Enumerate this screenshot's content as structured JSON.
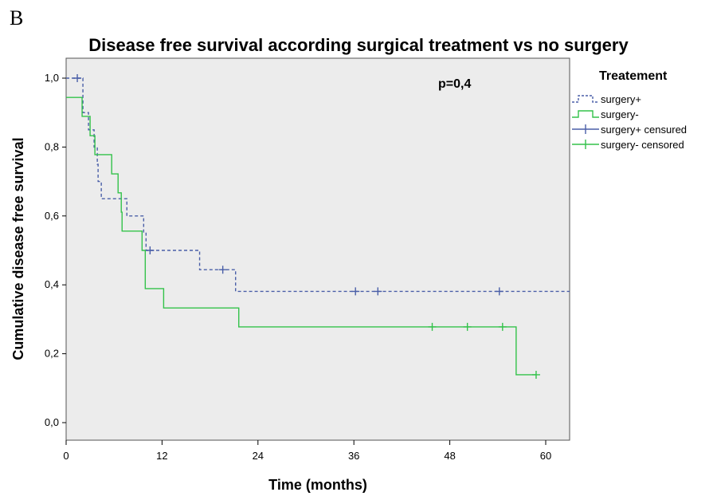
{
  "panel_letter": "B",
  "chart_data": {
    "type": "line",
    "title": "Disease free survival according surgical treatment vs no surgery",
    "xlabel": "Time (months)",
    "ylabel": "Cumulative disease free survival",
    "xlim": [
      0,
      63
    ],
    "ylim": [
      -0.06,
      1.06
    ],
    "xticks": [
      "0",
      "12",
      "24",
      "36",
      "48",
      "60"
    ],
    "xtick_values": [
      0,
      12,
      24,
      36,
      48,
      60
    ],
    "yticks": [
      "0,0",
      "0,2",
      "0,4",
      "0,6",
      "0,8",
      "1,0"
    ],
    "ytick_values": [
      0,
      0.2,
      0.4,
      0.6,
      0.8,
      1.0
    ],
    "annotation": "p=0,4",
    "legend_title": "Treatement",
    "legend_position": "right",
    "plot_background": "#ececec",
    "series": [
      {
        "name": "surgery+",
        "color": "#4a5fa8",
        "style": "dashed",
        "steps": [
          [
            0,
            1.0
          ],
          [
            1.8,
            1.0
          ],
          [
            2.1,
            0.9
          ],
          [
            2.8,
            0.85
          ],
          [
            3.5,
            0.8
          ],
          [
            3.9,
            0.75
          ],
          [
            4.0,
            0.7
          ],
          [
            4.4,
            0.65
          ],
          [
            7.5,
            0.65
          ],
          [
            7.6,
            0.6
          ],
          [
            9.5,
            0.6
          ],
          [
            9.7,
            0.55
          ],
          [
            10.0,
            0.5
          ],
          [
            16.6,
            0.5
          ],
          [
            16.7,
            0.444
          ],
          [
            20.9,
            0.444
          ],
          [
            21.2,
            0.381
          ],
          [
            63,
            0.381
          ]
        ],
        "censored": [
          [
            1.4,
            1.0
          ],
          [
            10.5,
            0.5
          ],
          [
            19.6,
            0.444
          ],
          [
            36.2,
            0.381
          ],
          [
            39.0,
            0.381
          ],
          [
            54.2,
            0.381
          ]
        ]
      },
      {
        "name": "surgery-",
        "color": "#33c24a",
        "style": "solid",
        "steps": [
          [
            0,
            0.944
          ],
          [
            1.9,
            0.944
          ],
          [
            2.0,
            0.889
          ],
          [
            2.9,
            0.889
          ],
          [
            3.0,
            0.833
          ],
          [
            3.5,
            0.833
          ],
          [
            3.6,
            0.778
          ],
          [
            5.6,
            0.778
          ],
          [
            5.7,
            0.722
          ],
          [
            6.4,
            0.722
          ],
          [
            6.5,
            0.667
          ],
          [
            6.8,
            0.667
          ],
          [
            6.9,
            0.611
          ],
          [
            7.0,
            0.556
          ],
          [
            9.3,
            0.556
          ],
          [
            9.5,
            0.5
          ],
          [
            9.8,
            0.5
          ],
          [
            9.9,
            0.389
          ],
          [
            12.1,
            0.389
          ],
          [
            12.2,
            0.333
          ],
          [
            21.5,
            0.333
          ],
          [
            21.6,
            0.278
          ],
          [
            56.2,
            0.278
          ],
          [
            56.3,
            0.139
          ],
          [
            58.8,
            0.139
          ]
        ],
        "censored": [
          [
            45.8,
            0.278
          ],
          [
            50.2,
            0.278
          ],
          [
            54.6,
            0.278
          ],
          [
            58.8,
            0.139
          ]
        ]
      }
    ],
    "legend_entries": [
      "surgery+",
      "surgery-",
      "surgery+ censured",
      "surgery- censored"
    ]
  }
}
